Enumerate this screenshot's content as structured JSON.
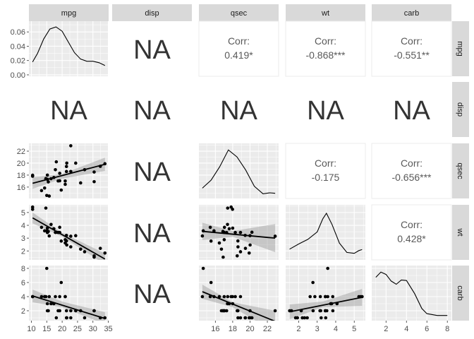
{
  "variables": [
    "mpg",
    "disp",
    "qsec",
    "wt",
    "carb"
  ],
  "corr_label": "Corr:",
  "na_label": "NA",
  "colors": {
    "panel_bg": "#ebebeb",
    "grid": "#ffffff",
    "strip_bg": "#d9d9d9",
    "point": "#000000",
    "ribbon": "#999999",
    "corr_text": "#595959",
    "na_text": "#333333",
    "tick_text": "#4d4d4d"
  },
  "chart_data": {
    "type": "scatter_matrix",
    "axes": {
      "mpg": {
        "range": [
          9.2,
          35.1
        ],
        "ticks": [
          10,
          15,
          20,
          25,
          30,
          35
        ]
      },
      "qsec": {
        "range": [
          14.1,
          23.3
        ],
        "ticks": [
          16,
          18,
          20,
          22
        ]
      },
      "wt": {
        "range": [
          1.3,
          5.6
        ],
        "ticks": [
          2,
          3,
          4,
          5
        ]
      },
      "carb": {
        "range": [
          0.6,
          8.4
        ],
        "ticks": [
          2,
          4,
          6,
          8
        ]
      },
      "density_mpg": {
        "range": [
          -0.002,
          0.075
        ],
        "ticks": [
          0.0,
          0.02,
          0.04,
          0.06
        ],
        "tick_labels": [
          "0.00",
          "0.02",
          "0.04",
          "0.06"
        ]
      }
    },
    "densities": {
      "mpg": [
        [
          10.4,
          0.018
        ],
        [
          12,
          0.03
        ],
        [
          14,
          0.05
        ],
        [
          16,
          0.064
        ],
        [
          18,
          0.067
        ],
        [
          20,
          0.061
        ],
        [
          22,
          0.046
        ],
        [
          24,
          0.031
        ],
        [
          26,
          0.022
        ],
        [
          28,
          0.019
        ],
        [
          30,
          0.019
        ],
        [
          32,
          0.017
        ],
        [
          33.9,
          0.013
        ]
      ],
      "qsec": [
        [
          14.5,
          0.16
        ],
        [
          15.5,
          0.33
        ],
        [
          16.5,
          0.62
        ],
        [
          17.5,
          0.98
        ],
        [
          18.5,
          0.83
        ],
        [
          19.5,
          0.55
        ],
        [
          20.5,
          0.2
        ],
        [
          21.5,
          0.04
        ],
        [
          22.3,
          0.06
        ],
        [
          22.9,
          0.05
        ]
      ],
      "wt": [
        [
          1.51,
          0.17
        ],
        [
          2,
          0.28
        ],
        [
          2.5,
          0.38
        ],
        [
          3,
          0.54
        ],
        [
          3.3,
          0.82
        ],
        [
          3.5,
          0.94
        ],
        [
          3.8,
          0.7
        ],
        [
          4.2,
          0.3
        ],
        [
          4.6,
          0.1
        ],
        [
          5,
          0.08
        ],
        [
          5.25,
          0.14
        ],
        [
          5.42,
          0.16
        ]
      ],
      "carb": [
        [
          1,
          0.87
        ],
        [
          1.5,
          0.98
        ],
        [
          2,
          0.93
        ],
        [
          2.5,
          0.79
        ],
        [
          3,
          0.72
        ],
        [
          3.5,
          0.81
        ],
        [
          4,
          0.8
        ],
        [
          4.8,
          0.52
        ],
        [
          5.5,
          0.2
        ],
        [
          6,
          0.09
        ],
        [
          7,
          0.05
        ],
        [
          8,
          0.05
        ]
      ]
    },
    "points": {
      "mpg": [
        21,
        21,
        22.8,
        21.4,
        18.7,
        18.1,
        14.3,
        24.4,
        22.8,
        19.2,
        17.8,
        16.4,
        17.3,
        15.2,
        10.4,
        10.4,
        14.7,
        32.4,
        30.4,
        33.9,
        21.5,
        15.5,
        15.2,
        13.3,
        19.2,
        27.3,
        26,
        30.4,
        15.8,
        19.7,
        15,
        21.4
      ],
      "qsec": [
        16.46,
        17.02,
        18.61,
        19.44,
        17.02,
        20.22,
        15.84,
        20,
        22.9,
        18.3,
        18.9,
        17.4,
        17.6,
        18,
        17.98,
        17.82,
        17.42,
        19.47,
        18.52,
        19.9,
        20.01,
        16.87,
        17.3,
        15.41,
        17.05,
        18.9,
        16.7,
        16.9,
        14.5,
        15.5,
        14.6,
        18.6
      ],
      "wt": [
        2.62,
        2.875,
        2.32,
        3.215,
        3.44,
        3.46,
        3.57,
        3.19,
        3.15,
        3.44,
        3.44,
        4.07,
        3.73,
        3.78,
        5.25,
        5.424,
        5.345,
        2.2,
        1.615,
        1.835,
        2.465,
        3.52,
        3.435,
        3.84,
        3.845,
        1.935,
        2.14,
        1.513,
        3.17,
        2.77,
        3.57,
        2.78
      ],
      "carb": [
        4,
        4,
        1,
        1,
        2,
        1,
        4,
        2,
        2,
        4,
        4,
        3,
        3,
        3,
        4,
        4,
        4,
        1,
        2,
        1,
        1,
        2,
        2,
        4,
        2,
        1,
        2,
        2,
        4,
        6,
        8,
        2
      ]
    },
    "fits": {
      "qsec|mpg": {
        "line": [
          [
            10.4,
            16.63
          ],
          [
            33.9,
            19.8
          ]
        ],
        "upper": [
          [
            10.4,
            17.6
          ],
          [
            20,
            18.2
          ],
          [
            33.9,
            20.9
          ]
        ],
        "lower": [
          [
            10.4,
            15.7
          ],
          [
            20,
            17.4
          ],
          [
            33.9,
            18.7
          ]
        ]
      },
      "wt|mpg": {
        "line": [
          [
            10.4,
            4.58
          ],
          [
            33.9,
            1.37
          ]
        ],
        "upper": [
          [
            10.4,
            5.0
          ],
          [
            20,
            3.42
          ],
          [
            33.9,
            1.8
          ]
        ],
        "lower": [
          [
            10.4,
            4.15
          ],
          [
            20,
            3.12
          ],
          [
            33.9,
            0.95
          ]
        ]
      },
      "carb|mpg": {
        "line": [
          [
            10.4,
            4.1
          ],
          [
            33.9,
            0.9
          ]
        ],
        "upper": [
          [
            10.4,
            5.0
          ],
          [
            20,
            3.3
          ],
          [
            33.9,
            1.8
          ]
        ],
        "lower": [
          [
            10.4,
            3.2
          ],
          [
            20,
            2.5
          ],
          [
            33.9,
            0.1
          ]
        ]
      },
      "wt|qsec": {
        "line": [
          [
            14.5,
            3.53
          ],
          [
            22.9,
            3.0
          ]
        ],
        "upper": [
          [
            14.5,
            4.2
          ],
          [
            18,
            3.55
          ],
          [
            22.9,
            4.1
          ]
        ],
        "lower": [
          [
            14.5,
            2.85
          ],
          [
            18,
            3.1
          ],
          [
            22.9,
            1.9
          ]
        ]
      },
      "carb|qsec": {
        "line": [
          [
            14.5,
            4.7
          ],
          [
            22.9,
            0.5
          ]
        ],
        "upper": [
          [
            14.5,
            5.7
          ],
          [
            18,
            3.2
          ],
          [
            22.9,
            2.0
          ]
        ],
        "lower": [
          [
            14.5,
            3.7
          ],
          [
            18,
            2.5
          ],
          [
            22.9,
            -1.0
          ]
        ]
      },
      "carb|wt": {
        "line": [
          [
            1.513,
            1.85
          ],
          [
            5.424,
            3.9
          ]
        ],
        "upper": [
          [
            1.513,
            2.9
          ],
          [
            3.3,
            3.3
          ],
          [
            5.424,
            5.1
          ]
        ],
        "lower": [
          [
            1.513,
            0.8
          ],
          [
            3.3,
            2.5
          ],
          [
            5.424,
            2.7
          ]
        ]
      }
    },
    "correlations": {
      "mpg|qsec": "0.419*",
      "mpg|wt": "-0.868***",
      "mpg|carb": "-0.551**",
      "qsec|wt": "-0.175",
      "qsec|carb": "-0.656***",
      "wt|carb": "0.428*"
    },
    "na_panels": [
      "mpg|disp",
      "disp|mpg",
      "disp|disp",
      "disp|qsec",
      "disp|wt",
      "disp|carb",
      "qsec|disp",
      "wt|disp",
      "carb|disp"
    ]
  }
}
